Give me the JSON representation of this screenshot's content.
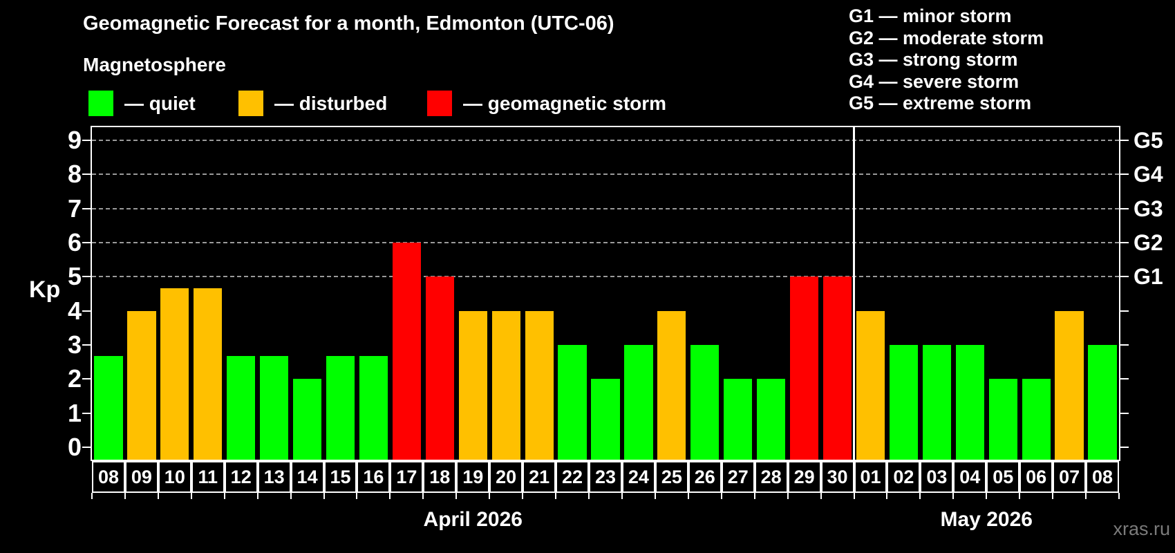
{
  "page": {
    "title": "Geomagnetic Forecast for a month, Edmonton (UTC-06)",
    "subtitle": "Magnetosphere",
    "watermark": "xras.ru"
  },
  "legend": {
    "items": [
      {
        "label": "— quiet",
        "state": "quiet"
      },
      {
        "label": "— disturbed",
        "state": "disturbed"
      },
      {
        "label": "— geomagnetic storm",
        "state": "storm"
      }
    ]
  },
  "g_scale_legend": {
    "lines": [
      "G1 — minor storm",
      "G2 — moderate storm",
      "G3 — strong storm",
      "G4 — severe storm",
      "G5 — extreme storm"
    ]
  },
  "chart_data": {
    "type": "bar",
    "title": "Geomagnetic Forecast for a month, Edmonton (UTC-06)",
    "subtitle": "Magnetosphere",
    "ylabel": "Kp",
    "ylim": [
      0,
      9
    ],
    "y_ticks": [
      0,
      1,
      2,
      3,
      4,
      5,
      6,
      7,
      8,
      9
    ],
    "gridlines": [
      5,
      6,
      7,
      8,
      9
    ],
    "grid_style": "dashed",
    "legend_position": "top",
    "right_axis_labels": [
      {
        "kp": 5,
        "label": "G1"
      },
      {
        "kp": 6,
        "label": "G2"
      },
      {
        "kp": 7,
        "label": "G3"
      },
      {
        "kp": 8,
        "label": "G4"
      },
      {
        "kp": 9,
        "label": "G5"
      }
    ],
    "colors": {
      "quiet": "#00ff00",
      "disturbed": "#ffc000",
      "storm": "#ff0000"
    },
    "months": [
      {
        "label": "April 2026",
        "days": 23
      },
      {
        "label": "May 2026",
        "days": 8
      }
    ],
    "days": [
      {
        "d": "08",
        "v": 2.67,
        "s": "quiet"
      },
      {
        "d": "09",
        "v": 4,
        "s": "disturbed"
      },
      {
        "d": "10",
        "v": 4.67,
        "s": "disturbed"
      },
      {
        "d": "11",
        "v": 4.67,
        "s": "disturbed"
      },
      {
        "d": "12",
        "v": 2.67,
        "s": "quiet"
      },
      {
        "d": "13",
        "v": 2.67,
        "s": "quiet"
      },
      {
        "d": "14",
        "v": 2,
        "s": "quiet"
      },
      {
        "d": "15",
        "v": 2.67,
        "s": "quiet"
      },
      {
        "d": "16",
        "v": 2.67,
        "s": "quiet"
      },
      {
        "d": "17",
        "v": 6,
        "s": "storm"
      },
      {
        "d": "18",
        "v": 5,
        "s": "storm"
      },
      {
        "d": "19",
        "v": 4,
        "s": "disturbed"
      },
      {
        "d": "20",
        "v": 4,
        "s": "disturbed"
      },
      {
        "d": "21",
        "v": 4,
        "s": "disturbed"
      },
      {
        "d": "22",
        "v": 3,
        "s": "quiet"
      },
      {
        "d": "23",
        "v": 2,
        "s": "quiet"
      },
      {
        "d": "24",
        "v": 3,
        "s": "quiet"
      },
      {
        "d": "25",
        "v": 4,
        "s": "disturbed"
      },
      {
        "d": "26",
        "v": 3,
        "s": "quiet"
      },
      {
        "d": "27",
        "v": 2,
        "s": "quiet"
      },
      {
        "d": "28",
        "v": 2,
        "s": "quiet"
      },
      {
        "d": "29",
        "v": 5,
        "s": "storm"
      },
      {
        "d": "30",
        "v": 5,
        "s": "storm"
      },
      {
        "d": "01",
        "v": 4,
        "s": "disturbed"
      },
      {
        "d": "02",
        "v": 3,
        "s": "quiet"
      },
      {
        "d": "03",
        "v": 3,
        "s": "quiet"
      },
      {
        "d": "04",
        "v": 3,
        "s": "quiet"
      },
      {
        "d": "05",
        "v": 2,
        "s": "quiet"
      },
      {
        "d": "06",
        "v": 2,
        "s": "quiet"
      },
      {
        "d": "07",
        "v": 4,
        "s": "disturbed"
      },
      {
        "d": "08",
        "v": 3,
        "s": "quiet"
      }
    ]
  }
}
